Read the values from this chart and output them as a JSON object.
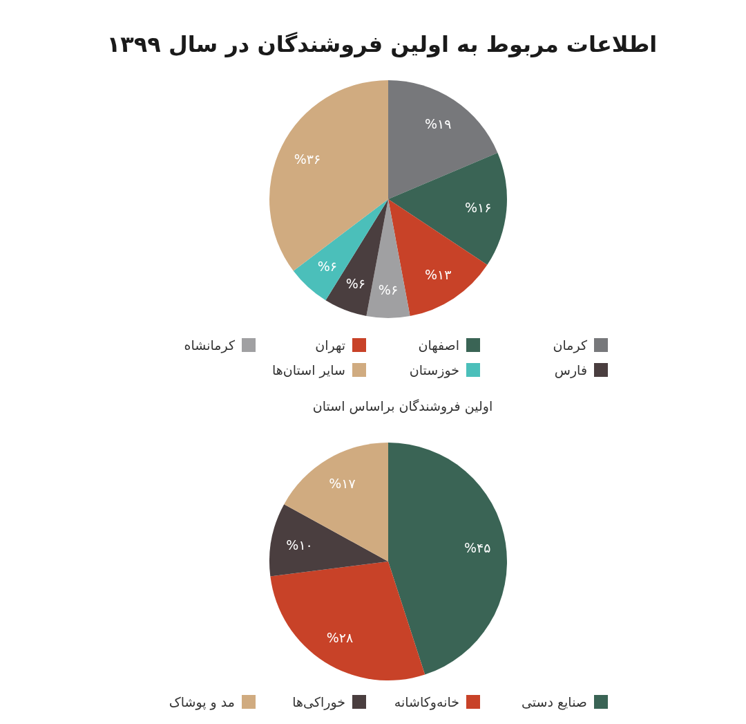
{
  "chart_data": [
    {
      "type": "pie",
      "title": "اطلاعات مربوط به اولین فروشندگان در سال ۱۳۹۹",
      "categories": [
        "کرمان",
        "اصفهان",
        "تهران",
        "کرمانشاه",
        "فارس",
        "خوزستان",
        "سایر استان‌ها"
      ],
      "values": [
        19,
        16,
        13,
        6,
        6,
        6,
        36
      ],
      "value_labels": [
        "%۱۹",
        "%۱۶",
        "%۱۳",
        "%۶",
        "%۶",
        "%۶",
        "%۳۶"
      ],
      "colors": [
        "#77787b",
        "#3a6455",
        "#c84228",
        "#a0a0a2",
        "#4a3e3f",
        "#4bbfba",
        "#d0ab80"
      ],
      "legend": "bottom",
      "annotations": [
        "اولین فروشندگان براساس استان"
      ]
    },
    {
      "type": "pie",
      "categories": [
        "صنایع دستی",
        "خانه‌وکاشانه",
        "خوراکی‌ها",
        "مد و پوشاک"
      ],
      "values": [
        45,
        28,
        10,
        17
      ],
      "value_labels": [
        "%۴۵",
        "%۲۸",
        "%۱۰",
        "%۱۷"
      ],
      "colors": [
        "#3a6455",
        "#c84228",
        "#4a3e3f",
        "#d0ab80"
      ],
      "legend": "bottom"
    }
  ]
}
